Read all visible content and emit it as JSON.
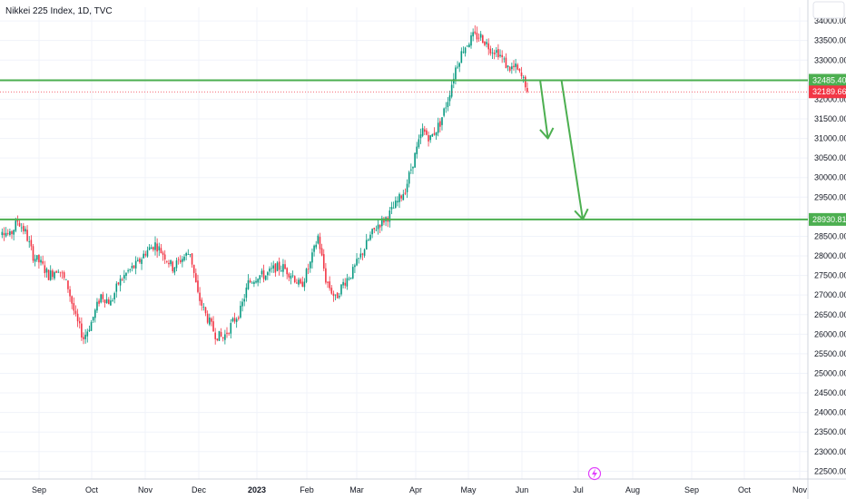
{
  "header": {
    "title": "Nikkei 225 Index, 1D, TVC"
  },
  "chart_data": {
    "type": "candlestick",
    "title": "Nikkei 225 Index, 1D, TVC",
    "ylim": [
      22300,
      34350
    ],
    "y_ticks": [
      "34000.00",
      "33500.00",
      "33000.00",
      "32500.00",
      "32000.00",
      "31500.00",
      "31000.00",
      "30500.00",
      "30000.00",
      "29500.00",
      "29000.00",
      "28500.00",
      "28000.00",
      "27500.00",
      "27000.00",
      "26500.00",
      "26000.00",
      "25500.00",
      "25000.00",
      "24500.00",
      "24000.00",
      "23500.00",
      "23000.00",
      "22500.00"
    ],
    "x_ticks": [
      "Sep",
      "Oct",
      "Nov",
      "Dec",
      "2023",
      "Feb",
      "Mar",
      "Apr",
      "May",
      "Jun",
      "Jul",
      "Aug",
      "Sep",
      "Oct",
      "Nov"
    ],
    "levels": [
      {
        "label": "32485.40",
        "value": 32485.4,
        "color": "#4caf50"
      },
      {
        "label": "28930.81",
        "value": 28930.81,
        "color": "#4caf50"
      }
    ],
    "last_price": {
      "label": "32189.66",
      "value": 32189.66,
      "color": "#f23645"
    },
    "colors": {
      "up": "#089981",
      "down": "#f23645",
      "arrow": "#4caf50"
    },
    "series_path": [
      [
        0,
        28400
      ],
      [
        4,
        28700
      ],
      [
        8,
        28500
      ],
      [
        12,
        28900
      ],
      [
        16,
        28600
      ],
      [
        20,
        28000
      ],
      [
        24,
        27800
      ],
      [
        28,
        27500
      ],
      [
        33,
        27700
      ],
      [
        38,
        27200
      ],
      [
        42,
        26400
      ],
      [
        46,
        25900
      ],
      [
        50,
        26300
      ],
      [
        55,
        27000
      ],
      [
        60,
        26800
      ],
      [
        64,
        27300
      ],
      [
        69,
        27600
      ],
      [
        74,
        27800
      ],
      [
        78,
        28100
      ],
      [
        83,
        28300
      ],
      [
        88,
        28000
      ],
      [
        92,
        27700
      ],
      [
        96,
        27900
      ],
      [
        101,
        28100
      ],
      [
        105,
        27000
      ],
      [
        109,
        26500
      ],
      [
        114,
        26000
      ],
      [
        118,
        25900
      ],
      [
        123,
        26300
      ],
      [
        127,
        26600
      ],
      [
        131,
        27300
      ],
      [
        136,
        27500
      ],
      [
        140,
        27500
      ],
      [
        145,
        27700
      ],
      [
        149,
        27700
      ],
      [
        154,
        27500
      ],
      [
        158,
        27200
      ],
      [
        163,
        27800
      ],
      [
        167,
        28500
      ],
      [
        171,
        27400
      ],
      [
        176,
        26900
      ],
      [
        180,
        27300
      ],
      [
        185,
        27600
      ],
      [
        189,
        28000
      ],
      [
        194,
        28500
      ],
      [
        198,
        28800
      ],
      [
        203,
        29000
      ],
      [
        207,
        29300
      ],
      [
        212,
        29700
      ],
      [
        216,
        30400
      ],
      [
        221,
        31200
      ],
      [
        225,
        31000
      ],
      [
        230,
        31400
      ],
      [
        234,
        32000
      ],
      [
        238,
        32800
      ],
      [
        242,
        33300
      ],
      [
        247,
        33600
      ],
      [
        251,
        33600
      ],
      [
        256,
        33300
      ],
      [
        260,
        33200
      ],
      [
        265,
        32800
      ],
      [
        269,
        32800
      ],
      [
        274,
        32400
      ],
      [
        275,
        32190
      ]
    ],
    "arrows": [
      {
        "from_day": 282,
        "from_value": 32485.4,
        "to_day": 286,
        "to_value": 31000
      },
      {
        "from_day": 293,
        "from_value": 32485.4,
        "to_day": 304,
        "to_value": 28930.81
      }
    ]
  }
}
